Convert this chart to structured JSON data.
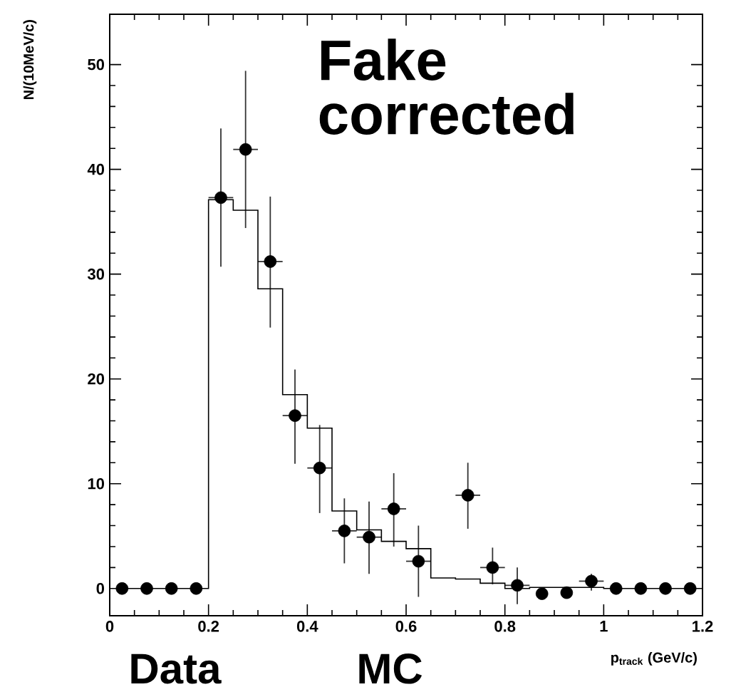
{
  "chart_data": {
    "type": "scatter",
    "xlabel": "p$_{track}$ (GeV/c)",
    "ylabel": "N/(10MeV/c)",
    "annotations": [
      "Fake corrected",
      "Data",
      "MC"
    ],
    "x": [
      0.025,
      0.075,
      0.125,
      0.175,
      0.225,
      0.275,
      0.325,
      0.375,
      0.425,
      0.475,
      0.525,
      0.575,
      0.625,
      0.675,
      0.725,
      0.775,
      0.825,
      0.875,
      0.925,
      0.975,
      1.025,
      1.075,
      1.125,
      1.175
    ],
    "series": [
      {
        "color": "#000000",
        "marker": "circle",
        "values": [
          0,
          0,
          0,
          0,
          37.3,
          41.9,
          31.2,
          16.5,
          11.5,
          5.5,
          4.9,
          7.6,
          2.6,
          null,
          8.9,
          2.0,
          0.3,
          -0.5,
          -0.4,
          0.7,
          0,
          0,
          0,
          0
        ],
        "errors": [
          null,
          null,
          null,
          null,
          [
            30.7,
            43.9
          ],
          [
            34.4,
            49.4
          ],
          [
            24.9,
            37.4
          ],
          [
            11.9,
            20.9
          ],
          [
            7.2,
            15.6
          ],
          [
            2.4,
            8.6
          ],
          [
            1.4,
            8.3
          ],
          [
            4.0,
            11.0
          ],
          [
            -0.8,
            6.0
          ],
          null,
          [
            5.7,
            12.0
          ],
          [
            0.4,
            3.9
          ],
          [
            -1.5,
            2.0
          ],
          [
            -1.0,
            0.0
          ],
          null,
          [
            -0.2,
            1.4
          ],
          null,
          null,
          null,
          null
        ],
        "xerrors": [
          null,
          null,
          null,
          null,
          0.025,
          0.025,
          0.025,
          0.025,
          0.025,
          0.025,
          0.025,
          0.025,
          0.025,
          null,
          0.025,
          0.025,
          0.025,
          null,
          null,
          0.025,
          null,
          null,
          null,
          null
        ]
      },
      {
        "type": "step",
        "color": "#000000",
        "marker": "none",
        "values": [
          0,
          0,
          0,
          0,
          37.1,
          36.1,
          28.6,
          18.5,
          15.3,
          7.4,
          5.6,
          4.5,
          3.8,
          1.0,
          0.9,
          0.5,
          0.0,
          0.1,
          0.1,
          0.1,
          0,
          0,
          0,
          0
        ]
      }
    ],
    "xlim": [
      0,
      1.2
    ],
    "ylim": [
      -2.6,
      54.8
    ],
    "xticks": [
      0,
      0.2,
      0.4,
      0.6,
      0.8,
      1,
      1.2
    ],
    "yticks": [
      0,
      10,
      20,
      30,
      40,
      50
    ],
    "grid": false
  }
}
